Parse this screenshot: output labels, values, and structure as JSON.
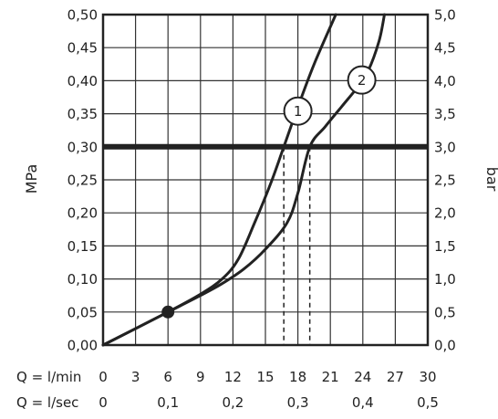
{
  "chart_data": {
    "type": "line",
    "ylabel": "MPa",
    "y2label": "bar",
    "x_primary": {
      "label": "Q = l/min",
      "ticks": [
        "0",
        "3",
        "6",
        "9",
        "12",
        "15",
        "18",
        "21",
        "24",
        "27",
        "30"
      ],
      "range": [
        0,
        30
      ]
    },
    "x_secondary": {
      "label": "Q = l/sec",
      "ticks": [
        {
          "value": 0,
          "label": "0"
        },
        {
          "value": 0.1,
          "label": "0,1"
        },
        {
          "value": 0.2,
          "label": "0,2"
        },
        {
          "value": 0.3,
          "label": "0,3"
        },
        {
          "value": 0.4,
          "label": "0,4"
        },
        {
          "value": 0.5,
          "label": "0,5"
        }
      ]
    },
    "y_left": {
      "range": [
        0,
        0.5
      ],
      "ticks": [
        {
          "value": 0.0,
          "label": "0,00"
        },
        {
          "value": 0.05,
          "label": "0,05"
        },
        {
          "value": 0.1,
          "label": "0,10"
        },
        {
          "value": 0.15,
          "label": "0,15"
        },
        {
          "value": 0.2,
          "label": "0,20"
        },
        {
          "value": 0.25,
          "label": "0,25"
        },
        {
          "value": 0.3,
          "label": "0,30"
        },
        {
          "value": 0.35,
          "label": "0,35"
        },
        {
          "value": 0.4,
          "label": "0,40"
        },
        {
          "value": 0.45,
          "label": "0,45"
        },
        {
          "value": 0.5,
          "label": "0,50"
        }
      ]
    },
    "y_right": {
      "ticks": [
        {
          "value": 0.0,
          "label": "0,0"
        },
        {
          "value": 0.05,
          "label": "0,5"
        },
        {
          "value": 0.1,
          "label": "1,0"
        },
        {
          "value": 0.15,
          "label": "1,5"
        },
        {
          "value": 0.2,
          "label": "2,0"
        },
        {
          "value": 0.25,
          "label": "2,5"
        },
        {
          "value": 0.3,
          "label": "3,0"
        },
        {
          "value": 0.35,
          "label": "3,5"
        },
        {
          "value": 0.4,
          "label": "4,0"
        },
        {
          "value": 0.45,
          "label": "4,5"
        },
        {
          "value": 0.5,
          "label": "5,0"
        }
      ]
    },
    "grid": true,
    "reference_line": {
      "y": 0.3
    },
    "marker": {
      "x": 6,
      "y": 0.05
    },
    "drop_lines": [
      {
        "x": 16.7,
        "y": 0.3
      },
      {
        "x": 19.1,
        "y": 0.3
      }
    ],
    "series": [
      {
        "label": "1",
        "label_at": {
          "x": 18,
          "y": 0.354
        },
        "x": [
          0,
          6,
          9,
          11,
          12.5,
          14,
          15.5,
          16.7,
          18,
          19.5,
          21.5
        ],
        "y": [
          0,
          0.05,
          0.077,
          0.1,
          0.13,
          0.185,
          0.245,
          0.3,
          0.36,
          0.425,
          0.5
        ]
      },
      {
        "label": "2",
        "label_at": {
          "x": 23.9,
          "y": 0.401
        },
        "x": [
          0,
          6,
          9,
          11,
          13,
          15,
          17,
          18,
          19.1,
          20.5,
          22,
          23.5,
          24.5,
          25.5,
          26
        ],
        "y": [
          0,
          0.05,
          0.075,
          0.093,
          0.115,
          0.145,
          0.185,
          0.23,
          0.3,
          0.33,
          0.36,
          0.39,
          0.415,
          0.46,
          0.5
        ]
      }
    ]
  }
}
